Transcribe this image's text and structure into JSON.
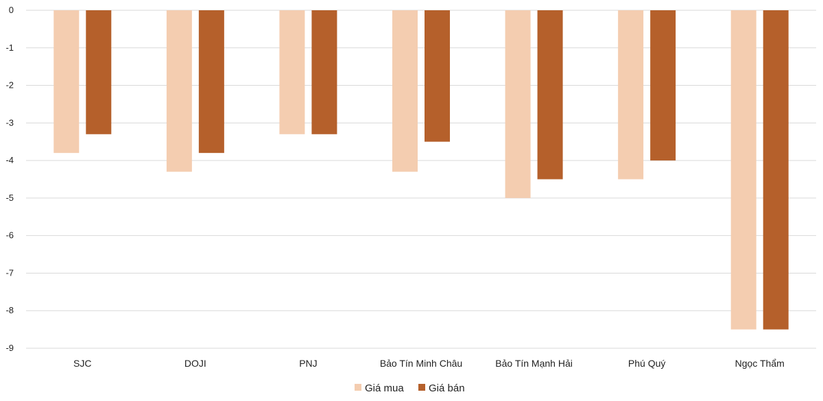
{
  "chart_data": {
    "type": "bar",
    "categories": [
      "SJC",
      "DOJI",
      "PNJ",
      "Bảo Tín Minh Châu",
      "Bảo Tín Mạnh Hải",
      "Phú Quý",
      "Ngọc Thẩm"
    ],
    "series": [
      {
        "name": "Giá mua",
        "color": "#F4CDB0",
        "values": [
          -3.8,
          -4.3,
          -3.3,
          -4.3,
          -5.0,
          -4.5,
          -8.5
        ]
      },
      {
        "name": "Giá bán",
        "color": "#B5602B",
        "values": [
          -3.3,
          -3.8,
          -3.3,
          -3.5,
          -4.5,
          -4.0,
          -8.5
        ]
      }
    ],
    "ylim": [
      -9,
      0
    ],
    "yticks": [
      0,
      -1,
      -2,
      -3,
      -4,
      -5,
      -6,
      -7,
      -8,
      -9
    ],
    "grid": true,
    "legend": "bottom-center",
    "title": "",
    "xlabel": "",
    "ylabel": ""
  }
}
